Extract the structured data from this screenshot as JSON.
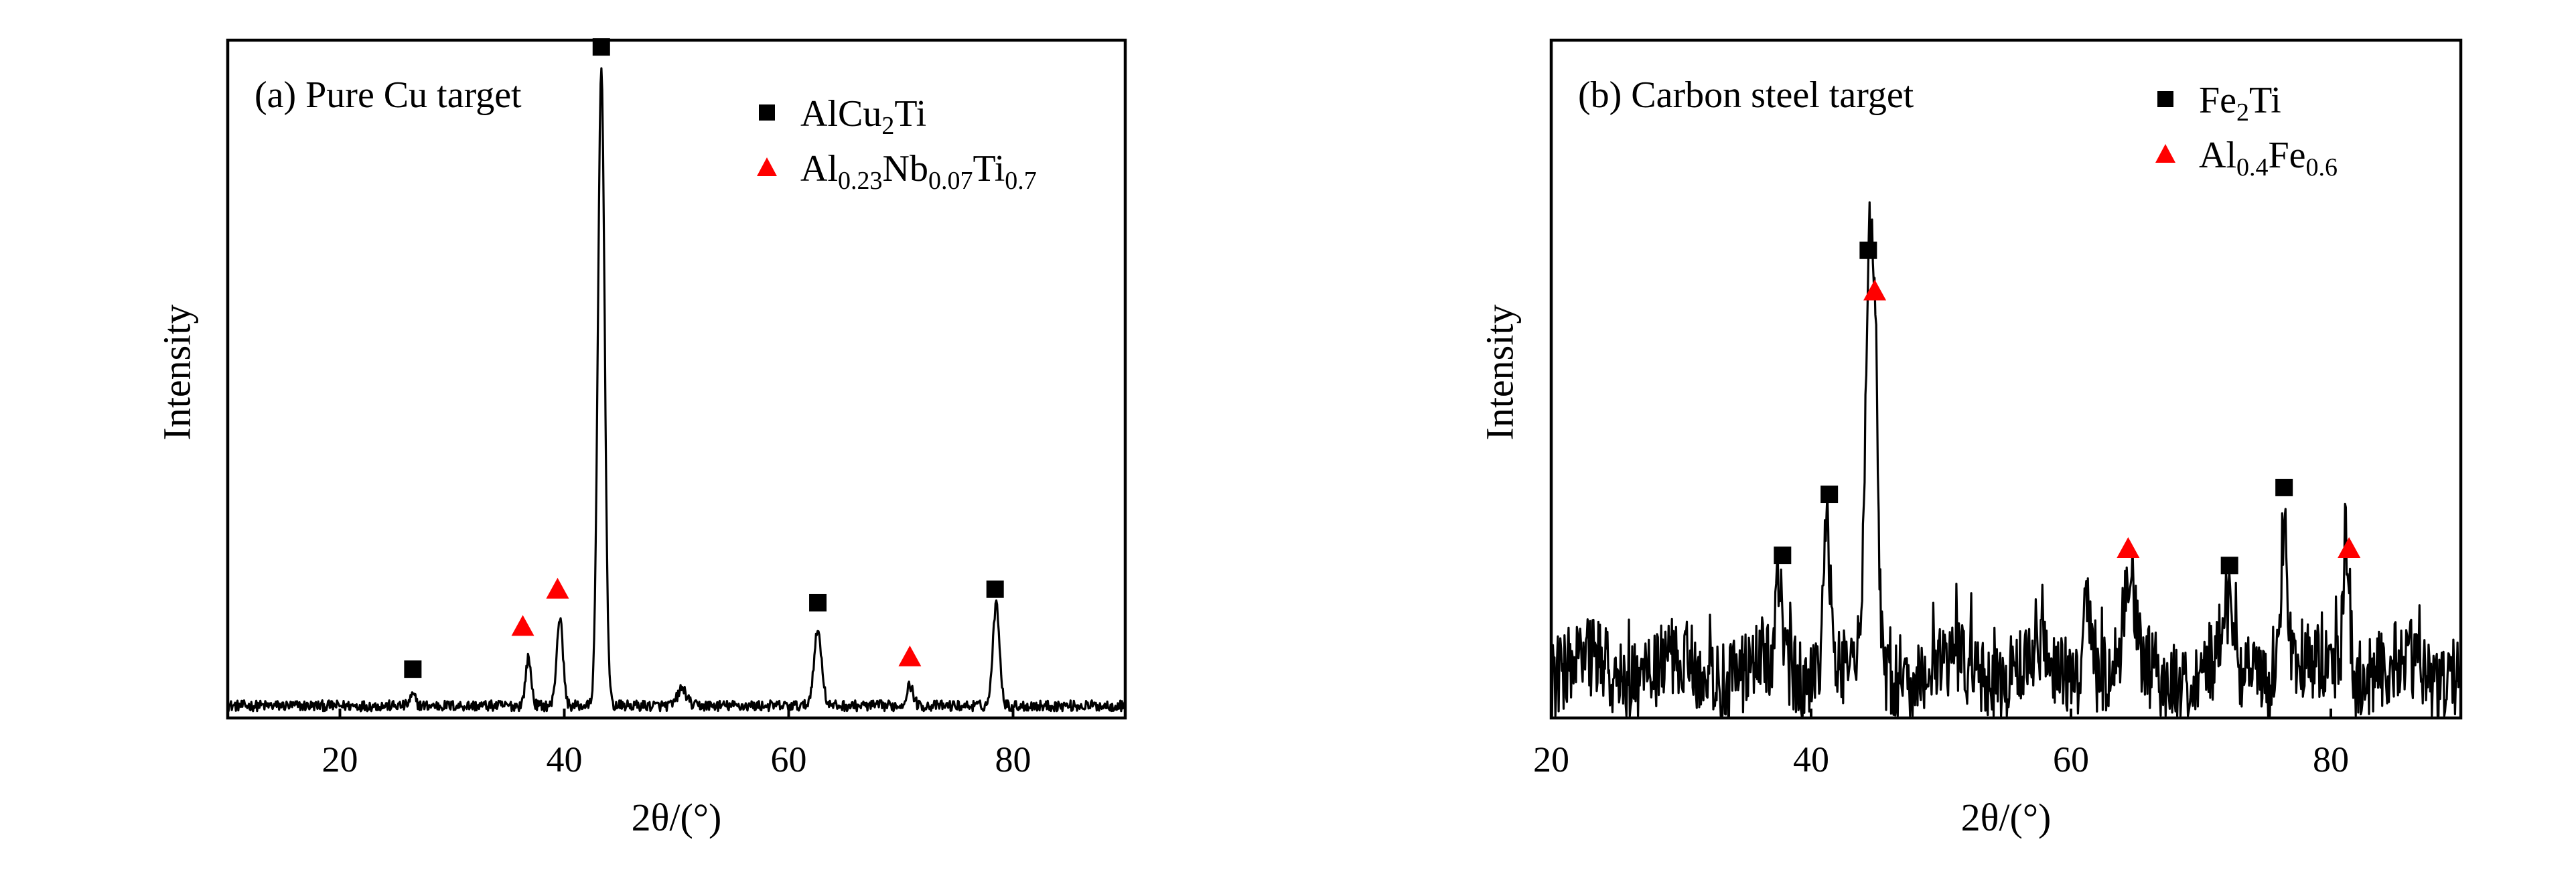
{
  "chart_data": [
    {
      "type": "line",
      "title": "(a) Pure Cu  target",
      "xlabel": "2θ/(°)",
      "ylabel": "Intensity",
      "xlim": [
        10,
        90
      ],
      "ylim": [
        0,
        100
      ],
      "x_ticks": [
        20,
        40,
        60,
        80
      ],
      "y_ticks": [],
      "grid": false,
      "legend_position": "top-right",
      "legend": [
        {
          "marker": "square",
          "color": "#000000",
          "base": "AlCu",
          "sub1": "2",
          "mid": "Ti",
          "sub2": "",
          "tail": "",
          "sub3": ""
        },
        {
          "marker": "triangle",
          "color": "#ff0000",
          "base": "Al",
          "sub1": "0.23",
          "mid": "Nb",
          "sub2": "0.07",
          "tail": "Ti",
          "sub3": "0.7"
        }
      ],
      "noise_level": 1.6,
      "peaks": [
        {
          "x": 26.5,
          "h": 1.5,
          "w": 0.25
        },
        {
          "x": 36.8,
          "h": 7,
          "w": 0.25
        },
        {
          "x": 39.6,
          "h": 13,
          "w": 0.28
        },
        {
          "x": 43.3,
          "h": 94,
          "w": 0.3
        },
        {
          "x": 50.5,
          "h": 2.5,
          "w": 0.4
        },
        {
          "x": 62.6,
          "h": 11,
          "w": 0.35
        },
        {
          "x": 70.8,
          "h": 3,
          "w": 0.3
        },
        {
          "x": 78.5,
          "h": 15,
          "w": 0.3
        }
      ],
      "markers": [
        {
          "shape": "square",
          "x": 26.5,
          "y": 7.2
        },
        {
          "shape": "triangle",
          "x": 36.3,
          "y": 13.5
        },
        {
          "shape": "triangle",
          "x": 39.4,
          "y": 19
        },
        {
          "shape": "square",
          "x": 43.3,
          "y": 99
        },
        {
          "shape": "square",
          "x": 62.6,
          "y": 17
        },
        {
          "shape": "triangle",
          "x": 70.8,
          "y": 9
        },
        {
          "shape": "square",
          "x": 78.4,
          "y": 19
        }
      ]
    },
    {
      "type": "line",
      "title": "(b) Carbon steel target",
      "xlabel": "2θ/(°)",
      "ylabel": "Intensity",
      "xlim": [
        20,
        90
      ],
      "ylim": [
        0,
        100
      ],
      "x_ticks": [
        20,
        40,
        60,
        80
      ],
      "y_ticks": [],
      "grid": false,
      "legend_position": "top-right",
      "legend": [
        {
          "marker": "square",
          "color": "#000000",
          "base": "Fe",
          "sub1": "2",
          "mid": "Ti",
          "sub2": "",
          "tail": "",
          "sub3": ""
        },
        {
          "marker": "triangle",
          "color": "#ff0000",
          "base": "Al",
          "sub1": "0.4",
          "mid": "Fe",
          "sub2": "0.6",
          "tail": "",
          "sub3": ""
        }
      ],
      "noise_level": 12,
      "peaks": [
        {
          "x": 37.5,
          "h": 12,
          "w": 0.25
        },
        {
          "x": 41.2,
          "h": 22,
          "w": 0.25
        },
        {
          "x": 44.4,
          "h": 55,
          "w": 0.25
        },
        {
          "x": 44.9,
          "h": 48,
          "w": 0.25
        },
        {
          "x": 61.2,
          "h": 12,
          "w": 0.3
        },
        {
          "x": 64.5,
          "h": 14,
          "w": 0.35
        },
        {
          "x": 72.2,
          "h": 8,
          "w": 0.3
        },
        {
          "x": 76.4,
          "h": 23,
          "w": 0.25
        },
        {
          "x": 81.2,
          "h": 18,
          "w": 0.25
        }
      ],
      "markers": [
        {
          "shape": "square",
          "x": 37.8,
          "y": 24
        },
        {
          "shape": "square",
          "x": 41.4,
          "y": 33
        },
        {
          "shape": "square",
          "x": 44.4,
          "y": 69
        },
        {
          "shape": "triangle",
          "x": 44.9,
          "y": 63
        },
        {
          "shape": "triangle",
          "x": 64.4,
          "y": 25
        },
        {
          "shape": "square",
          "x": 72.2,
          "y": 22.5
        },
        {
          "shape": "square",
          "x": 76.4,
          "y": 34
        },
        {
          "shape": "triangle",
          "x": 81.4,
          "y": 25
        }
      ]
    }
  ]
}
